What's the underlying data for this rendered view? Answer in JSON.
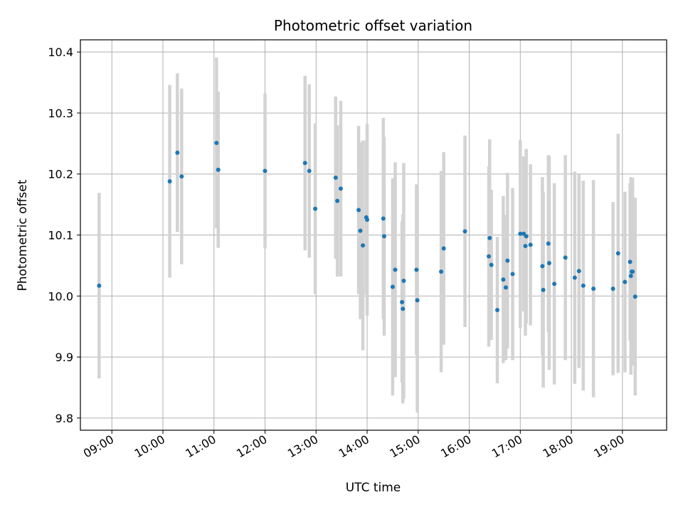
{
  "chart_data": {
    "type": "scatter",
    "title": "Photometric offset variation",
    "xlabel": "UTC time",
    "ylabel": "Photometric offset",
    "x_ticks": [
      "09:00",
      "10:00",
      "11:00",
      "12:00",
      "13:00",
      "14:00",
      "15:00",
      "16:00",
      "17:00",
      "18:00",
      "19:00"
    ],
    "y_ticks": [
      "9.8",
      "9.9",
      "10.0",
      "10.1",
      "10.2",
      "10.3",
      "10.4"
    ],
    "xlim": [
      "08:23",
      "19:52"
    ],
    "ylim": [
      9.78,
      10.42
    ],
    "grid": true,
    "legend": "none",
    "colors": {
      "point": "#1f77b4",
      "errorbar": "#d3d3d3",
      "grid": "#b0b0b0"
    },
    "x": [
      "08:45",
      "10:08",
      "10:17",
      "10:22",
      "11:03",
      "11:05",
      "12:00",
      "12:47",
      "12:52",
      "12:59",
      "13:23",
      "13:25",
      "13:29",
      "13:50",
      "13:52",
      "13:55",
      "13:59",
      "14:00",
      "14:19",
      "14:20",
      "14:30",
      "14:33",
      "14:41",
      "14:42",
      "14:43",
      "14:58",
      "14:59",
      "15:27",
      "15:30",
      "15:55",
      "16:23",
      "16:24",
      "16:26",
      "16:33",
      "16:40",
      "16:43",
      "16:45",
      "16:51",
      "17:00",
      "17:04",
      "17:06",
      "17:07",
      "17:12",
      "17:26",
      "17:27",
      "17:33",
      "17:34",
      "17:40",
      "17:53",
      "18:04",
      "18:09",
      "18:14",
      "18:26",
      "18:49",
      "18:55",
      "19:03",
      "19:09",
      "19:10",
      "19:11",
      "19:12",
      "19:15"
    ],
    "y": [
      10.017,
      10.188,
      10.235,
      10.196,
      10.251,
      10.207,
      10.205,
      10.218,
      10.205,
      10.143,
      10.194,
      10.156,
      10.176,
      10.141,
      10.107,
      10.083,
      10.129,
      10.125,
      10.127,
      10.098,
      10.015,
      10.043,
      9.99,
      9.979,
      10.025,
      10.043,
      9.993,
      10.04,
      10.078,
      10.106,
      10.065,
      10.095,
      10.051,
      9.977,
      10.027,
      10.014,
      10.058,
      10.036,
      10.102,
      10.102,
      10.082,
      10.098,
      10.084,
      10.049,
      10.01,
      10.086,
      10.054,
      10.02,
      10.063,
      10.03,
      10.041,
      10.017,
      10.012,
      10.012,
      10.07,
      10.023,
      10.056,
      10.033,
      10.04,
      10.04,
      9.999
    ],
    "err": [
      0.152,
      0.158,
      0.13,
      0.144,
      0.14,
      0.128,
      0.127,
      0.143,
      0.142,
      0.14,
      0.133,
      0.124,
      0.144,
      0.138,
      0.145,
      0.172,
      0.126,
      0.157,
      0.165,
      0.163,
      0.178,
      0.176,
      0.132,
      0.155,
      0.193,
      0.14,
      0.184,
      0.165,
      0.158,
      0.157,
      0.148,
      0.162,
      0.123,
      0.12,
      0.137,
      0.119,
      0.144,
      0.141,
      0.154,
      0.127,
      0.147,
      0.143,
      0.132,
      0.146,
      0.16,
      0.145,
      0.175,
      0.165,
      0.168,
      0.174,
      0.159,
      0.172,
      0.178,
      0.142,
      0.196,
      0.148,
      0.129,
      0.162,
      0.153,
      0.154,
      0.162
    ]
  }
}
